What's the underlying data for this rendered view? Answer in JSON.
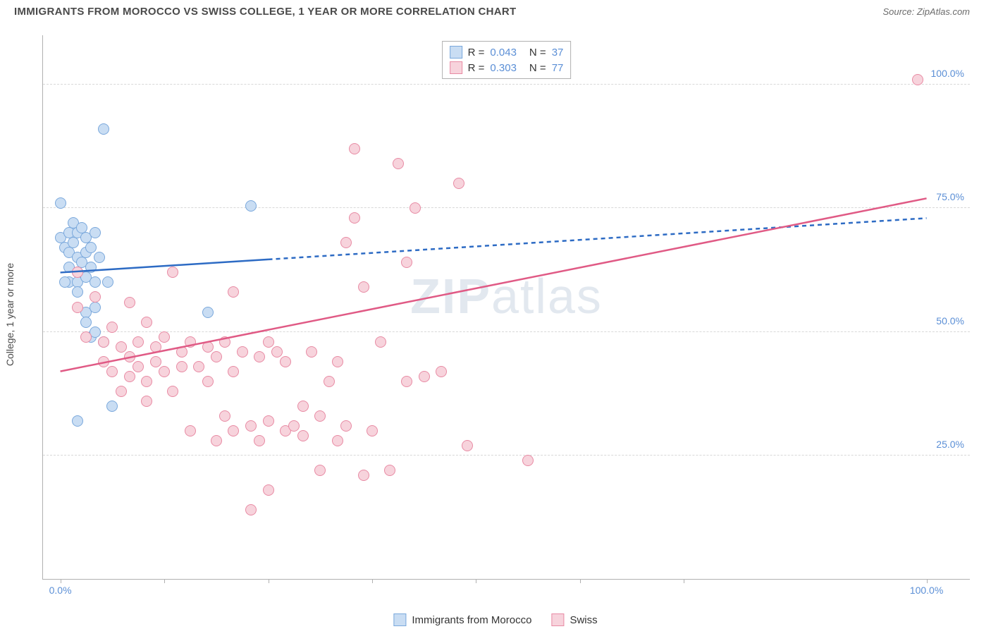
{
  "header": {
    "title": "IMMIGRANTS FROM MOROCCO VS SWISS COLLEGE, 1 YEAR OR MORE CORRELATION CHART",
    "source": "Source: ZipAtlas.com"
  },
  "watermark": {
    "part1": "ZIP",
    "part2": "atlas"
  },
  "chart": {
    "type": "scatter",
    "ylabel": "College, 1 year or more",
    "x_domain": [
      -2,
      105
    ],
    "y_domain": [
      0,
      110
    ],
    "x_ticks": [
      0,
      12,
      24,
      36,
      48,
      60,
      72,
      100
    ],
    "x_tick_labels": {
      "0": "0.0%",
      "100": "100.0%"
    },
    "y_ticks": [
      25,
      50,
      75,
      100
    ],
    "y_tick_labels": {
      "25": "25.0%",
      "50": "50.0%",
      "75": "75.0%",
      "100": "100.0%"
    },
    "grid_color": "#d8d8d8",
    "axis_color": "#b0b0b0",
    "background_color": "#ffffff",
    "series": [
      {
        "id": "morocco",
        "label": "Immigrants from Morocco",
        "fill": "#c9ddf3",
        "stroke": "#7aa8dc",
        "line_color": "#2d6bc4",
        "R": "0.043",
        "N": "37",
        "trend": {
          "x1": 0,
          "y1": 62,
          "x2": 100,
          "y2": 73,
          "solid_until_x": 24
        },
        "points": [
          [
            0,
            76
          ],
          [
            0,
            69
          ],
          [
            0.5,
            67
          ],
          [
            1,
            70
          ],
          [
            1,
            66
          ],
          [
            1,
            63
          ],
          [
            1,
            60
          ],
          [
            1.5,
            72
          ],
          [
            1.5,
            68
          ],
          [
            2,
            70
          ],
          [
            2,
            65
          ],
          [
            2,
            62
          ],
          [
            2,
            60
          ],
          [
            2,
            58
          ],
          [
            2.5,
            71
          ],
          [
            2.5,
            64
          ],
          [
            3,
            69
          ],
          [
            3,
            66
          ],
          [
            3,
            61
          ],
          [
            3,
            54
          ],
          [
            3,
            52
          ],
          [
            3.5,
            67
          ],
          [
            3.5,
            63
          ],
          [
            3.5,
            49
          ],
          [
            4,
            70
          ],
          [
            4,
            60
          ],
          [
            4,
            55
          ],
          [
            4,
            50
          ],
          [
            4.5,
            65
          ],
          [
            5,
            91
          ],
          [
            5,
            48
          ],
          [
            5.5,
            60
          ],
          [
            6,
            35
          ],
          [
            2,
            32
          ],
          [
            0.5,
            60
          ],
          [
            17,
            54
          ],
          [
            22,
            75.5
          ]
        ]
      },
      {
        "id": "swiss",
        "label": "Swiss",
        "fill": "#f7d3dc",
        "stroke": "#e88ba4",
        "line_color": "#e05a85",
        "R": "0.303",
        "N": "77",
        "trend": {
          "x1": 0,
          "y1": 42,
          "x2": 100,
          "y2": 77,
          "solid_until_x": 100
        },
        "points": [
          [
            2,
            62
          ],
          [
            2,
            55
          ],
          [
            3,
            49
          ],
          [
            4,
            57
          ],
          [
            5,
            48
          ],
          [
            5,
            44
          ],
          [
            6,
            51
          ],
          [
            6,
            42
          ],
          [
            7,
            47
          ],
          [
            7,
            38
          ],
          [
            8,
            56
          ],
          [
            8,
            45
          ],
          [
            8,
            41
          ],
          [
            9,
            48
          ],
          [
            9,
            43
          ],
          [
            10,
            52
          ],
          [
            10,
            40
          ],
          [
            10,
            36
          ],
          [
            11,
            47
          ],
          [
            11,
            44
          ],
          [
            12,
            49
          ],
          [
            12,
            42
          ],
          [
            13,
            38
          ],
          [
            13,
            62
          ],
          [
            14,
            46
          ],
          [
            14,
            43
          ],
          [
            15,
            48
          ],
          [
            15,
            30
          ],
          [
            16,
            43
          ],
          [
            17,
            47
          ],
          [
            17,
            40
          ],
          [
            18,
            45
          ],
          [
            18,
            28
          ],
          [
            19,
            48
          ],
          [
            19,
            33
          ],
          [
            20,
            58
          ],
          [
            20,
            42
          ],
          [
            20,
            30
          ],
          [
            21,
            46
          ],
          [
            22,
            31
          ],
          [
            22,
            14
          ],
          [
            23,
            45
          ],
          [
            23,
            28
          ],
          [
            24,
            48
          ],
          [
            24,
            32
          ],
          [
            24,
            18
          ],
          [
            25,
            46
          ],
          [
            26,
            30
          ],
          [
            26,
            44
          ],
          [
            27,
            31
          ],
          [
            28,
            35
          ],
          [
            28,
            29
          ],
          [
            29,
            46
          ],
          [
            30,
            33
          ],
          [
            30,
            22
          ],
          [
            31,
            40
          ],
          [
            32,
            44
          ],
          [
            32,
            28
          ],
          [
            33,
            68
          ],
          [
            33,
            31
          ],
          [
            34,
            87
          ],
          [
            34,
            73
          ],
          [
            35,
            59
          ],
          [
            35,
            21
          ],
          [
            36,
            30
          ],
          [
            37,
            48
          ],
          [
            38,
            22
          ],
          [
            39,
            84
          ],
          [
            40,
            64
          ],
          [
            40,
            40
          ],
          [
            41,
            75
          ],
          [
            42,
            41
          ],
          [
            44,
            42
          ],
          [
            46,
            80
          ],
          [
            47,
            27
          ],
          [
            54,
            24
          ],
          [
            99,
            101
          ]
        ]
      }
    ],
    "legend_top": [
      {
        "series": "morocco",
        "R_label": "R =",
        "N_label": "N ="
      },
      {
        "series": "swiss",
        "R_label": "R =",
        "N_label": "N ="
      }
    ]
  }
}
